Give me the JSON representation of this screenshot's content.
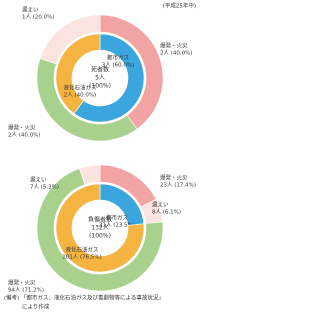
{
  "period": "(平成25年中)",
  "chart_data": [
    {
      "type": "donut",
      "center": [
        "死者数",
        "5人",
        "(100%)"
      ],
      "inner": {
        "categories": [
          "都市ガス",
          "液化石油ガス"
        ],
        "values": [
          3,
          2
        ],
        "value_labels": [
          "3人 (60.0%)",
          "2人 (40.0%)"
        ],
        "colors": [
          "#3aa6dd",
          "#f5b342"
        ]
      },
      "outer": {
        "categories": [
          "爆発・火災",
          "爆発・火災",
          "漏えい"
        ],
        "values": [
          2,
          2,
          1
        ],
        "value_labels": [
          "2人 (40.0%)",
          "2人 (40.0%)",
          "1人 (20.0%)"
        ],
        "colors": [
          "#f2a3a3",
          "#a9d18e",
          "#fbe3df"
        ]
      }
    },
    {
      "type": "donut",
      "center": [
        "負傷者数",
        "132人",
        "(100%)"
      ],
      "inner": {
        "categories": [
          "都市ガス",
          "液化石油ガス"
        ],
        "values": [
          31,
          101
        ],
        "value_labels": [
          "31人 (23.5%)",
          "101人 (76.5%)"
        ],
        "colors": [
          "#3aa6dd",
          "#f5b342"
        ]
      },
      "outer": {
        "categories": [
          "爆発・火災",
          "漏えい",
          "爆発・火災",
          "漏えい"
        ],
        "values": [
          23,
          8,
          94,
          7
        ],
        "value_labels": [
          "23人 (17.4%)",
          "8人 (6.1%)",
          "94人 (71.2%)",
          "7人 (5.3%)"
        ],
        "colors": [
          "#f2a3a3",
          "#fbe3df",
          "#a9d18e",
          "#fbe3df"
        ]
      }
    }
  ],
  "footnote": [
    "(備考) 「都市ガス、液化石油ガス及び毒劇物等による事故状況」",
    "により作成"
  ]
}
